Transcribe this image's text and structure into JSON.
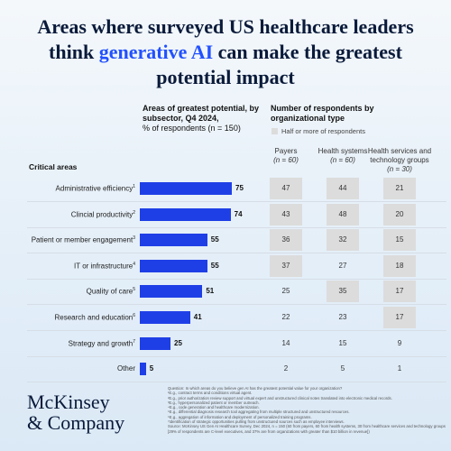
{
  "title": {
    "before": "Areas where surveyed US healthcare leaders think ",
    "highlight": "generative AI",
    "after": " can make the greatest potential impact"
  },
  "chart_data": {
    "type": "bar",
    "orientation": "horizontal",
    "title": "Areas of greatest potential, by subsector, Q4 2024,",
    "subtitle": "% of respondents (n = 150)",
    "axis_label": "Critical areas",
    "categories": [
      "Administrative efficiency",
      "Clincial productivity",
      "Patient or member engagement",
      "IT or infrastructure",
      "Quality of care",
      "Research and education",
      "Strategy and growth",
      "Other"
    ],
    "footnote_marks": [
      "1",
      "2",
      "3",
      "4",
      "5",
      "6",
      "7",
      null
    ],
    "values": [
      75,
      74,
      55,
      55,
      51,
      41,
      25,
      5
    ],
    "color": "#1f3fe6"
  },
  "table": {
    "title": "Number of respondents by organizational type",
    "legend": "Half or more of respondents",
    "legend_color": "#dcdcdc",
    "columns": [
      {
        "name": "Payers",
        "n": "(n = 60)",
        "values": [
          47,
          43,
          36,
          37,
          25,
          22,
          14,
          2
        ],
        "shaded": [
          true,
          true,
          true,
          true,
          false,
          false,
          false,
          false
        ]
      },
      {
        "name": "Health systems",
        "n": "(n = 60)",
        "values": [
          44,
          48,
          32,
          27,
          35,
          23,
          15,
          5
        ],
        "shaded": [
          true,
          true,
          true,
          false,
          true,
          false,
          false,
          false
        ]
      },
      {
        "name": "Health services and technology groups",
        "n": "(n = 30)",
        "values": [
          21,
          20,
          15,
          18,
          17,
          17,
          9,
          1
        ],
        "shaded": [
          true,
          true,
          true,
          true,
          true,
          true,
          false,
          false
        ]
      }
    ]
  },
  "footnotes": [
    "Question: In which areas do you believe gen AI has the greatest potential value for your organization?",
    "¹E.g., contract terms and conditions virtual agent.",
    "²E.g., prior authorization review support and virtual expert and unstructured clinical notes translated into electronic medical records.",
    "³E.g., hyperpersonalized patient or member outreach.",
    "⁴E.g., code generation and healthcare modernization.",
    "⁵E.g., differential diagnosis research tool aggregating from multiple structured and unstructured resources.",
    "⁶E.g., aggregation of information and deployment of personalized training programs.",
    "⁷Identification of strategic opportunities pulling from unstructured sources such as employee interviews.",
    "Source: McKinsey US Gen AI Healthcare Survey, Dec 2024, n = 150 (60 from payers, 60 from health systems, 30 from healthcare services and technology groups [29% of respondents are C-level executives, and 37% are from organizations with greater than $10 billion in revenue])"
  ],
  "logo": [
    "McKinsey",
    "& Company"
  ]
}
